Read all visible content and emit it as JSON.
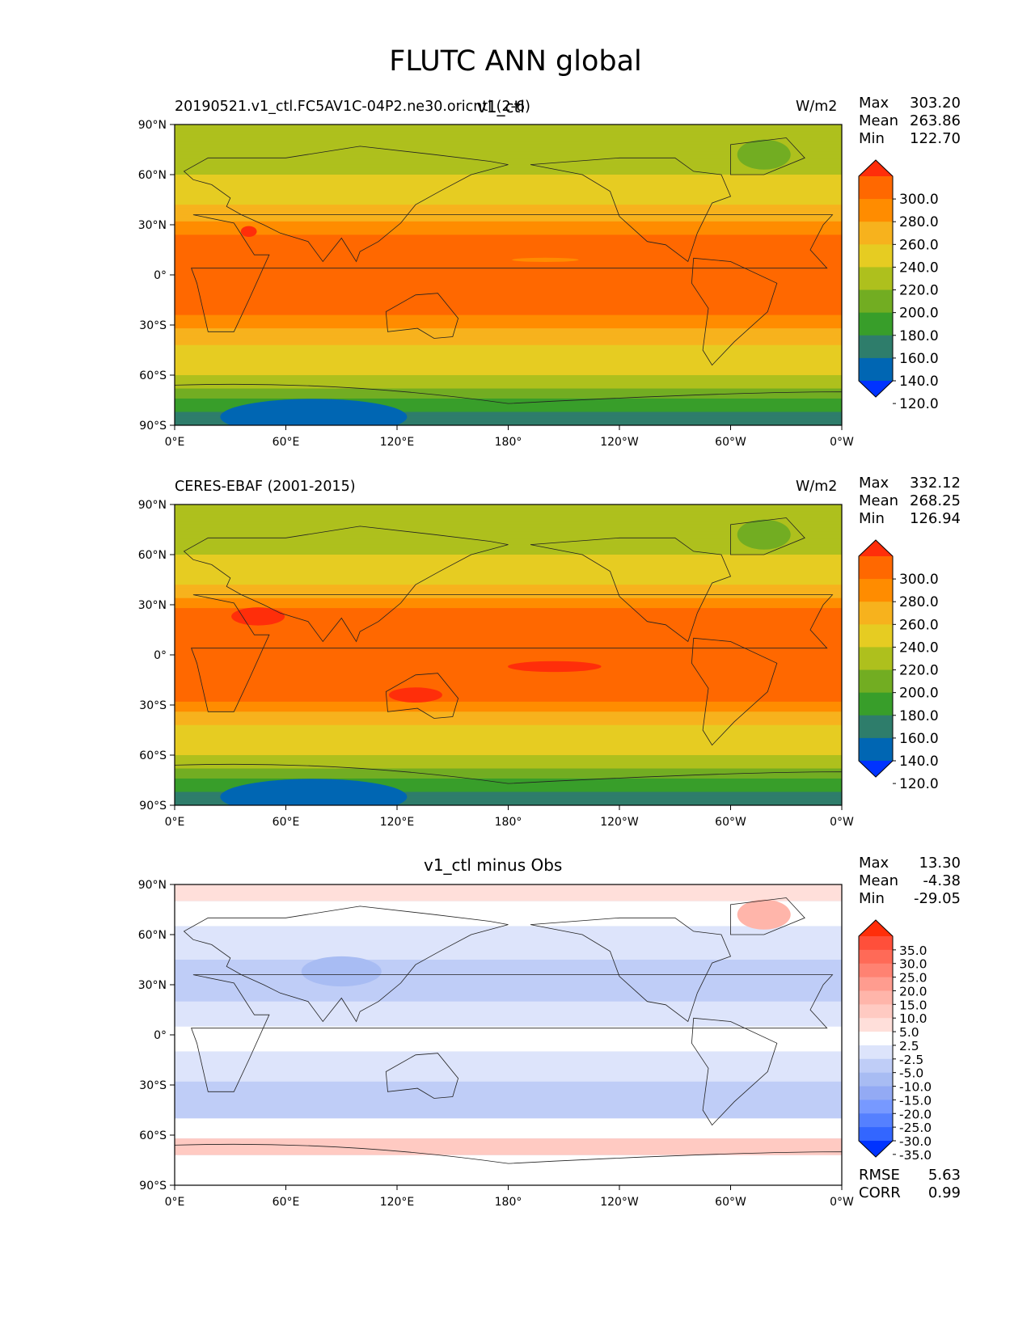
{
  "suptitle": "FLUTC ANN global",
  "axis_ticks": {
    "lat": [
      "90°N",
      "60°N",
      "30°N",
      "0°",
      "30°S",
      "60°S",
      "90°S"
    ],
    "lon": [
      "0°E",
      "60°E",
      "120°E",
      "180°",
      "120°W",
      "60°W",
      "0°W"
    ]
  },
  "colors": {
    "main_levels": [
      "#0033ff",
      "#0066b3",
      "#2e7d6b",
      "#389e2a",
      "#72ad22",
      "#aec01d",
      "#e6cc22",
      "#f7b21d",
      "#ff8c00",
      "#ff6800",
      "#ff2e0a"
    ],
    "diff_levels": [
      "#0033ff",
      "#3366ff",
      "#5580ff",
      "#7799ff",
      "#93aaf4",
      "#a8bcf3",
      "#bfcdf7",
      "#dde4fb",
      "#ffffff",
      "#ffdfda",
      "#ffcac2",
      "#ffb5aa",
      "#ff9c8f",
      "#ff8272",
      "#ff6a57",
      "#ff4f3a",
      "#ff2e0a"
    ]
  },
  "panels": [
    {
      "left_title": "20190521.v1_ctl.FC5AV1C-04P2.ne30.oricntl (2-6)",
      "center_title": "v1_ctl",
      "units": "W/m2",
      "stats": {
        "max_label": "Max",
        "max": "303.20",
        "mean_label": "Mean",
        "mean": "263.86",
        "min_label": "Min",
        "min": "122.70"
      },
      "colorbar_labels": [
        "300.0",
        "280.0",
        "260.0",
        "240.0",
        "220.0",
        "200.0",
        "180.0",
        "160.0",
        "140.0",
        "120.0"
      ]
    },
    {
      "left_title": "CERES-EBAF (2001-2015)",
      "center_title": "",
      "units": "W/m2",
      "stats": {
        "max_label": "Max",
        "max": "332.12",
        "mean_label": "Mean",
        "mean": "268.25",
        "min_label": "Min",
        "min": "126.94"
      },
      "colorbar_labels": [
        "300.0",
        "280.0",
        "260.0",
        "240.0",
        "220.0",
        "200.0",
        "180.0",
        "160.0",
        "140.0",
        "120.0"
      ]
    },
    {
      "left_title": "",
      "center_title": "v1_ctl minus Obs",
      "units": "",
      "stats": {
        "max_label": "Max",
        "max": "13.30",
        "mean_label": "Mean",
        "mean": "-4.38",
        "min_label": "Min",
        "min": "-29.05"
      },
      "colorbar_labels": [
        "35.0",
        "30.0",
        "25.0",
        "20.0",
        "15.0",
        "10.0",
        "5.0",
        "2.5",
        "-2.5",
        "-5.0",
        "-10.0",
        "-15.0",
        "-20.0",
        "-25.0",
        "-30.0",
        "-35.0"
      ],
      "rmse_label": "RMSE",
      "rmse": "5.63",
      "corr_label": "CORR",
      "corr": "0.99"
    }
  ]
}
